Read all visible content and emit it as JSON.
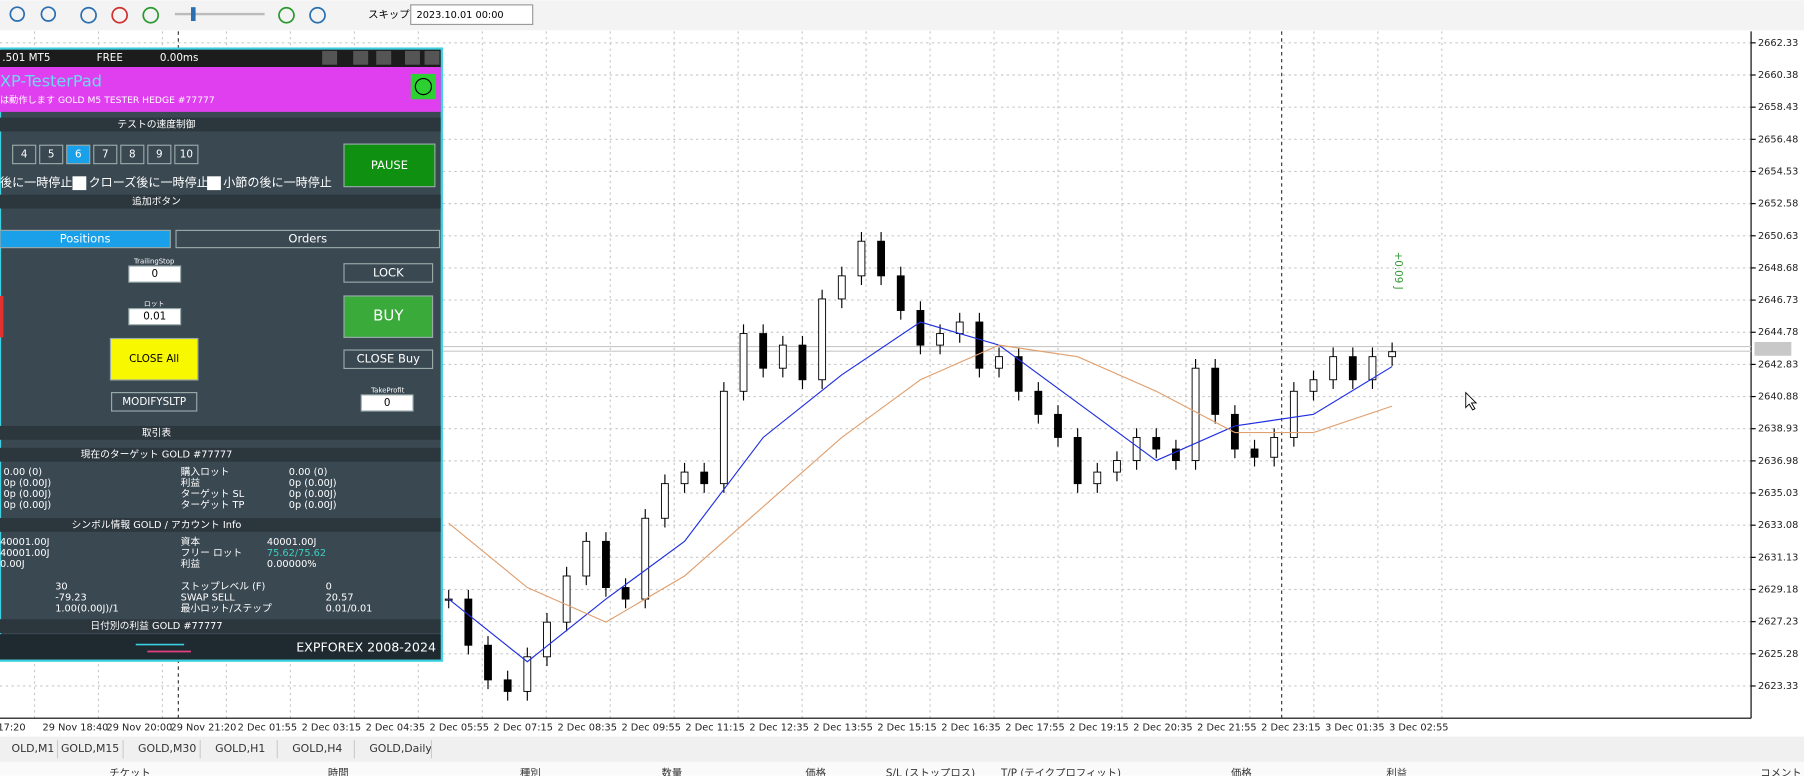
{
  "toolbar": {
    "skip": "スキップ",
    "date": "2023.10.01 00:00"
  },
  "panel": {
    "version": ".501 MT5",
    "mode": "FREE",
    "latency": "0.00ms",
    "title": "XP-TesterPad",
    "subtitle": "は動作します GOLD M5 TESTER HEDGE  #77777",
    "speed_section": "テストの速度制御",
    "speeds": [
      "4",
      "5",
      "6",
      "7",
      "8",
      "9",
      "10"
    ],
    "pause": "PAUSE",
    "checks": [
      "後に一時停止",
      "クローズ後に一時停止",
      "小節の後に一時停止"
    ],
    "extra_section": "追加ボタン",
    "tabs": [
      "Positions",
      "Orders"
    ],
    "trailing_label": "TrailingStop",
    "trailing_value": "0",
    "lock": "LOCK",
    "lot_label": "ロット",
    "lot_value": "0.01",
    "buy": "BUY",
    "close_all": "CLOSE All",
    "close_buy": "CLOSE Buy",
    "tp_label": "TakeProfit",
    "tp_value": "0",
    "modify": "MODIFYSLTP",
    "table_section": "取引表",
    "target_section": "現在のターゲット GOLD  #77777",
    "target_rows": [
      [
        "0.00 (0)",
        "購入ロット",
        "0.00 (0)"
      ],
      [
        "0p (0.00J)",
        "利益",
        "0p (0.00J)"
      ],
      [
        "0p (0.00J)",
        "ターゲット SL",
        "0p (0.00J)"
      ],
      [
        "0p (0.00J)",
        "ターゲット TP",
        "0p (0.00J)"
      ]
    ],
    "symbol_section": "シンボル情報 GOLD / アカウント Info",
    "symbol_rows": [
      [
        "40001.00J",
        "資本",
        "40001.00J"
      ],
      [
        "40001.00J",
        "フリー ロット",
        "75.62/75.62"
      ],
      [
        "0.00J",
        "利益",
        "0.00000%"
      ],
      [
        "30",
        "ストップレベル (F)",
        "0"
      ],
      [
        "-79.23",
        "SWAP SELL",
        "20.57"
      ],
      [
        "1.00(0.00J)/1",
        "最小ロット/ステップ",
        "0.01/0.01"
      ]
    ],
    "daily_section": "日付別の利益 GOLD  #77777",
    "footer": "EXPFOREX 2008-2024"
  },
  "chart": {
    "type": "candlestick",
    "ylim": [
      2623.33,
      2662.33
    ],
    "yticks": [
      2662.33,
      2660.38,
      2658.43,
      2656.48,
      2654.53,
      2652.58,
      2650.63,
      2648.68,
      2646.73,
      2644.78,
      2642.83,
      2640.88,
      2638.93,
      2636.98,
      2635.03,
      2633.08,
      2631.13,
      2629.18,
      2627.23,
      2625.28,
      2623.33
    ],
    "xlabels": [
      "17:20",
      "29 Nov 18:40",
      "29 Nov 20:00",
      "29 Nov 21:20",
      "2 Dec 01:55",
      "2 Dec 03:15",
      "2 Dec 04:35",
      "2 Dec 05:55",
      "2 Dec 07:15",
      "2 Dec 08:35",
      "2 Dec 09:55",
      "2 Dec 11:15",
      "2 Dec 12:35",
      "2 Dec 13:55",
      "2 Dec 15:15",
      "2 Dec 16:35",
      "2 Dec 17:55",
      "2 Dec 19:15",
      "2 Dec 20:35",
      "2 Dec 21:55",
      "2 Dec 23:15",
      "3 Dec 01:35",
      "3 Dec 02:55"
    ],
    "closes": [
      2628.6,
      2625.8,
      2623.7,
      2623.0,
      2625.1,
      2627.2,
      2630.0,
      2632.1,
      2629.3,
      2628.6,
      2633.5,
      2635.6,
      2636.3,
      2635.6,
      2641.2,
      2644.7,
      2642.6,
      2644.0,
      2641.9,
      2646.8,
      2648.2,
      2650.3,
      2648.2,
      2646.1,
      2644.0,
      2644.7,
      2645.4,
      2642.6,
      2643.3,
      2641.2,
      2639.8,
      2638.4,
      2635.6,
      2636.3,
      2637.0,
      2638.4,
      2637.7,
      2637.0,
      2642.6,
      2639.8,
      2637.7,
      2637.2,
      2638.4,
      2641.2,
      2641.9,
      2643.3,
      2641.9,
      2643.3,
      2643.6
    ],
    "ma_fast": {
      "color": "#1f2fe0",
      "values": [
        2628.6,
        2624.8,
        2628.6,
        2632.1,
        2638.4,
        2642.2,
        2645.4,
        2644.0,
        2640.5,
        2637.0,
        2639.1,
        2639.8,
        2642.7
      ]
    },
    "ma_slow": {
      "color": "#e0a070",
      "values": [
        2633.2,
        2629.3,
        2627.2,
        2630.0,
        2634.2,
        2638.4,
        2641.9,
        2644.0,
        2643.3,
        2641.2,
        2638.7,
        2638.7,
        2640.3
      ]
    },
    "annotation": "+0.09 J",
    "grid": true
  },
  "symbol_tabs": [
    "OLD,M1",
    "GOLD,M15",
    "GOLD,M30",
    "GOLD,H1",
    "GOLD,H4",
    "GOLD,Daily"
  ],
  "columns": [
    "チケット",
    "時間",
    "種別",
    "数量",
    "価格",
    "S/L (ストップロス)",
    "T/P (テイクプロフィット)",
    "価格",
    "利益",
    "コメント"
  ]
}
